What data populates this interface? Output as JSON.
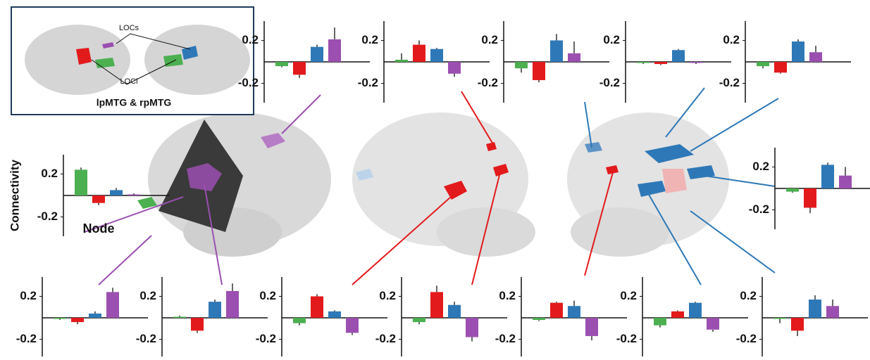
{
  "inset": {
    "labels": [
      "LOCs",
      "LOCi",
      "lpMTG & rpMTG"
    ]
  },
  "chart_data": [
    {
      "type": "bar",
      "values": [
        -0.04,
        -0.12,
        0.14,
        0.21
      ],
      "errors": [
        0.01,
        0.03,
        0.02,
        0.11
      ],
      "colors": [
        "#4caf50",
        "#e31a1c",
        "#2e78b7",
        "#9b4fb0"
      ],
      "ylim": [
        -0.38,
        0.38
      ],
      "yticks": [
        0.2,
        -0.2
      ]
    },
    {
      "type": "bar",
      "values": [
        0.02,
        0.16,
        0.12,
        -0.11
      ],
      "errors": [
        0.06,
        0.04,
        0.01,
        0.03
      ],
      "colors": [
        "#4caf50",
        "#e31a1c",
        "#2e78b7",
        "#9b4fb0"
      ],
      "ylim": [
        -0.38,
        0.38
      ],
      "yticks": [
        0.2,
        -0.2
      ]
    },
    {
      "type": "bar",
      "values": [
        -0.06,
        -0.17,
        0.2,
        0.08
      ],
      "errors": [
        0.04,
        0.02,
        0.06,
        0.11
      ],
      "colors": [
        "#4caf50",
        "#e31a1c",
        "#2e78b7",
        "#9b4fb0"
      ],
      "ylim": [
        -0.38,
        0.38
      ],
      "yticks": [
        0.2,
        -0.2
      ]
    },
    {
      "type": "bar",
      "values": [
        -0.01,
        -0.02,
        0.11,
        -0.01
      ],
      "errors": [
        0.01,
        0.01,
        0.01,
        0.01
      ],
      "colors": [
        "#4caf50",
        "#e31a1c",
        "#2e78b7",
        "#9b4fb0"
      ],
      "ylim": [
        -0.38,
        0.38
      ],
      "yticks": [
        0.2,
        -0.2
      ]
    },
    {
      "type": "bar",
      "values": [
        -0.04,
        -0.1,
        0.19,
        0.09
      ],
      "errors": [
        0.02,
        0.01,
        0.02,
        0.06
      ],
      "colors": [
        "#4caf50",
        "#e31a1c",
        "#2e78b7",
        "#9b4fb0"
      ],
      "ylim": [
        -0.38,
        0.38
      ],
      "yticks": [
        0.2,
        -0.2
      ]
    },
    {
      "type": "bar",
      "values": [
        0.24,
        -0.07,
        0.05,
        0.01
      ],
      "errors": [
        0.02,
        0.02,
        0.02,
        0.01
      ],
      "colors": [
        "#4caf50",
        "#e31a1c",
        "#2e78b7",
        "#9b4fb0"
      ],
      "ylim": [
        -0.38,
        0.38
      ],
      "yticks": [
        0.2,
        -0.2
      ],
      "ylabel": "Connectivity",
      "xlabel": "Node"
    },
    {
      "type": "bar",
      "values": [
        -0.03,
        -0.18,
        0.22,
        0.12
      ],
      "errors": [
        0.01,
        0.05,
        0.02,
        0.08
      ],
      "colors": [
        "#4caf50",
        "#e31a1c",
        "#2e78b7",
        "#9b4fb0"
      ],
      "ylim": [
        -0.38,
        0.38
      ],
      "yticks": [
        0.2,
        -0.2
      ]
    },
    {
      "type": "bar",
      "values": [
        -0.01,
        -0.04,
        0.04,
        0.24
      ],
      "errors": [
        0.01,
        0.02,
        0.02,
        0.04
      ],
      "colors": [
        "#4caf50",
        "#e31a1c",
        "#2e78b7",
        "#9b4fb0"
      ],
      "ylim": [
        -0.38,
        0.38
      ],
      "yticks": [
        0.2,
        -0.2
      ]
    },
    {
      "type": "bar",
      "values": [
        0.01,
        -0.12,
        0.15,
        0.25
      ],
      "errors": [
        0.01,
        0.02,
        0.02,
        0.07
      ],
      "colors": [
        "#4caf50",
        "#e31a1c",
        "#2e78b7",
        "#9b4fb0"
      ],
      "ylim": [
        -0.38,
        0.38
      ],
      "yticks": [
        0.2,
        -0.2
      ]
    },
    {
      "type": "bar",
      "values": [
        -0.05,
        0.2,
        0.06,
        -0.14
      ],
      "errors": [
        0.02,
        0.02,
        0.01,
        0.02
      ],
      "colors": [
        "#4caf50",
        "#e31a1c",
        "#2e78b7",
        "#9b4fb0"
      ],
      "ylim": [
        -0.38,
        0.38
      ],
      "yticks": [
        0.2,
        -0.2
      ]
    },
    {
      "type": "bar",
      "values": [
        -0.04,
        0.24,
        0.12,
        -0.18
      ],
      "errors": [
        0.02,
        0.06,
        0.03,
        0.04
      ],
      "colors": [
        "#4caf50",
        "#e31a1c",
        "#2e78b7",
        "#9b4fb0"
      ],
      "ylim": [
        -0.38,
        0.38
      ],
      "yticks": [
        0.2,
        -0.2
      ]
    },
    {
      "type": "bar",
      "values": [
        -0.02,
        0.14,
        0.11,
        -0.17
      ],
      "errors": [
        0.01,
        0.01,
        0.05,
        0.04
      ],
      "colors": [
        "#4caf50",
        "#e31a1c",
        "#2e78b7",
        "#9b4fb0"
      ],
      "ylim": [
        -0.38,
        0.38
      ],
      "yticks": [
        0.2,
        -0.2
      ]
    },
    {
      "type": "bar",
      "values": [
        -0.07,
        0.06,
        0.14,
        -0.11
      ],
      "errors": [
        0.02,
        0.01,
        0.01,
        0.02
      ],
      "colors": [
        "#4caf50",
        "#e31a1c",
        "#2e78b7",
        "#9b4fb0"
      ],
      "ylim": [
        -0.38,
        0.38
      ],
      "yticks": [
        0.2,
        -0.2
      ]
    },
    {
      "type": "bar",
      "values": [
        -0.01,
        -0.12,
        0.17,
        0.11
      ],
      "errors": [
        0.04,
        0.05,
        0.04,
        0.06
      ],
      "colors": [
        "#4caf50",
        "#e31a1c",
        "#2e78b7",
        "#9b4fb0"
      ],
      "ylim": [
        -0.38,
        0.38
      ],
      "yticks": [
        0.2,
        -0.2
      ]
    }
  ]
}
